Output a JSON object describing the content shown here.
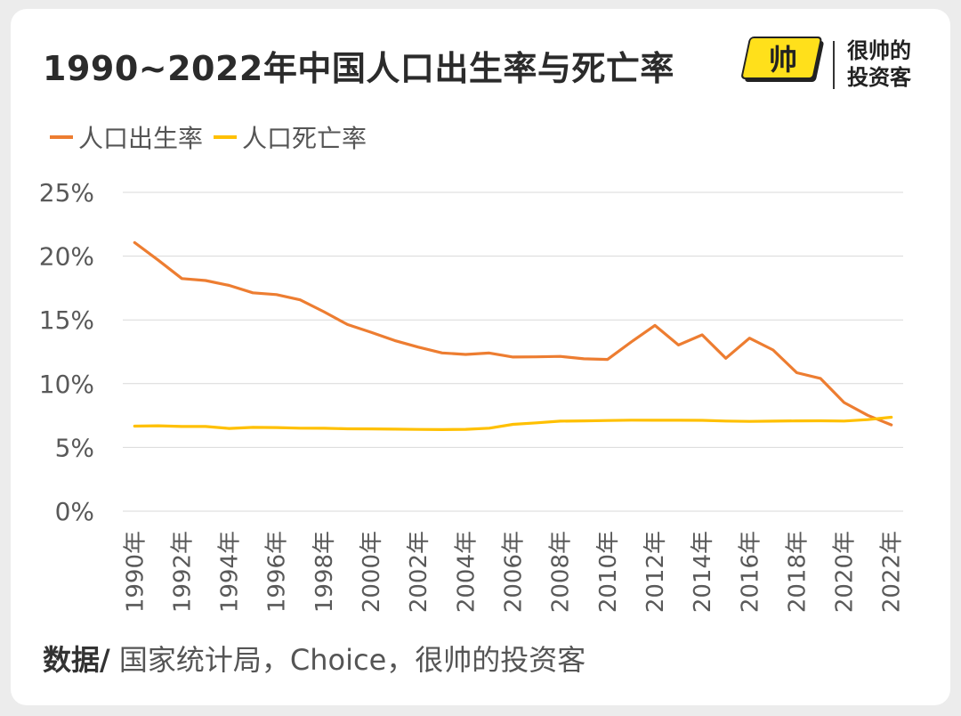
{
  "title": "1990~2022年中国人口出生率与死亡率",
  "logo": {
    "line1": "很帅的",
    "line2": "投资客",
    "mark": "帅"
  },
  "footer": {
    "label": "数据/",
    "text": " 国家统计局，Choice，很帅的投资客"
  },
  "colors": {
    "birth": "#ED7D31",
    "death": "#FFC000",
    "grid": "#d9d9d9",
    "tick": "#595959"
  },
  "chart_data": {
    "type": "line",
    "legend_position": "top-left",
    "grid": true,
    "ylim": [
      0,
      25
    ],
    "yticks": [
      "0%",
      "5%",
      "10%",
      "15%",
      "20%",
      "25%"
    ],
    "x": [
      "1990年",
      "1991年",
      "1992年",
      "1993年",
      "1994年",
      "1995年",
      "1996年",
      "1997年",
      "1998年",
      "1999年",
      "2000年",
      "2001年",
      "2002年",
      "2003年",
      "2004年",
      "2005年",
      "2006年",
      "2007年",
      "2008年",
      "2009年",
      "2010年",
      "2011年",
      "2012年",
      "2013年",
      "2014年",
      "2015年",
      "2016年",
      "2017年",
      "2018年",
      "2019年",
      "2020年",
      "2021年",
      "2022年"
    ],
    "xtick_labels": [
      "1990年",
      "1992年",
      "1994年",
      "1996年",
      "1998年",
      "2000年",
      "2002年",
      "2004年",
      "2006年",
      "2008年",
      "2010年",
      "2012年",
      "2014年",
      "2016年",
      "2018年",
      "2020年",
      "2022年"
    ],
    "series": [
      {
        "name": "人口出生率",
        "values": [
          21.06,
          19.68,
          18.24,
          18.09,
          17.7,
          17.12,
          16.98,
          16.57,
          15.64,
          14.64,
          14.03,
          13.38,
          12.86,
          12.41,
          12.29,
          12.4,
          12.09,
          12.1,
          12.14,
          11.95,
          11.9,
          13.27,
          14.57,
          13.03,
          13.83,
          11.99,
          13.57,
          12.64,
          10.86,
          10.41,
          8.52,
          7.52,
          6.77
        ]
      },
      {
        "name": "人口死亡率",
        "values": [
          6.67,
          6.7,
          6.64,
          6.64,
          6.49,
          6.57,
          6.56,
          6.51,
          6.5,
          6.46,
          6.45,
          6.43,
          6.41,
          6.4,
          6.42,
          6.51,
          6.81,
          6.93,
          7.06,
          7.08,
          7.11,
          7.14,
          7.13,
          7.13,
          7.12,
          7.07,
          7.04,
          7.06,
          7.08,
          7.09,
          7.07,
          7.18,
          7.37
        ]
      }
    ]
  }
}
